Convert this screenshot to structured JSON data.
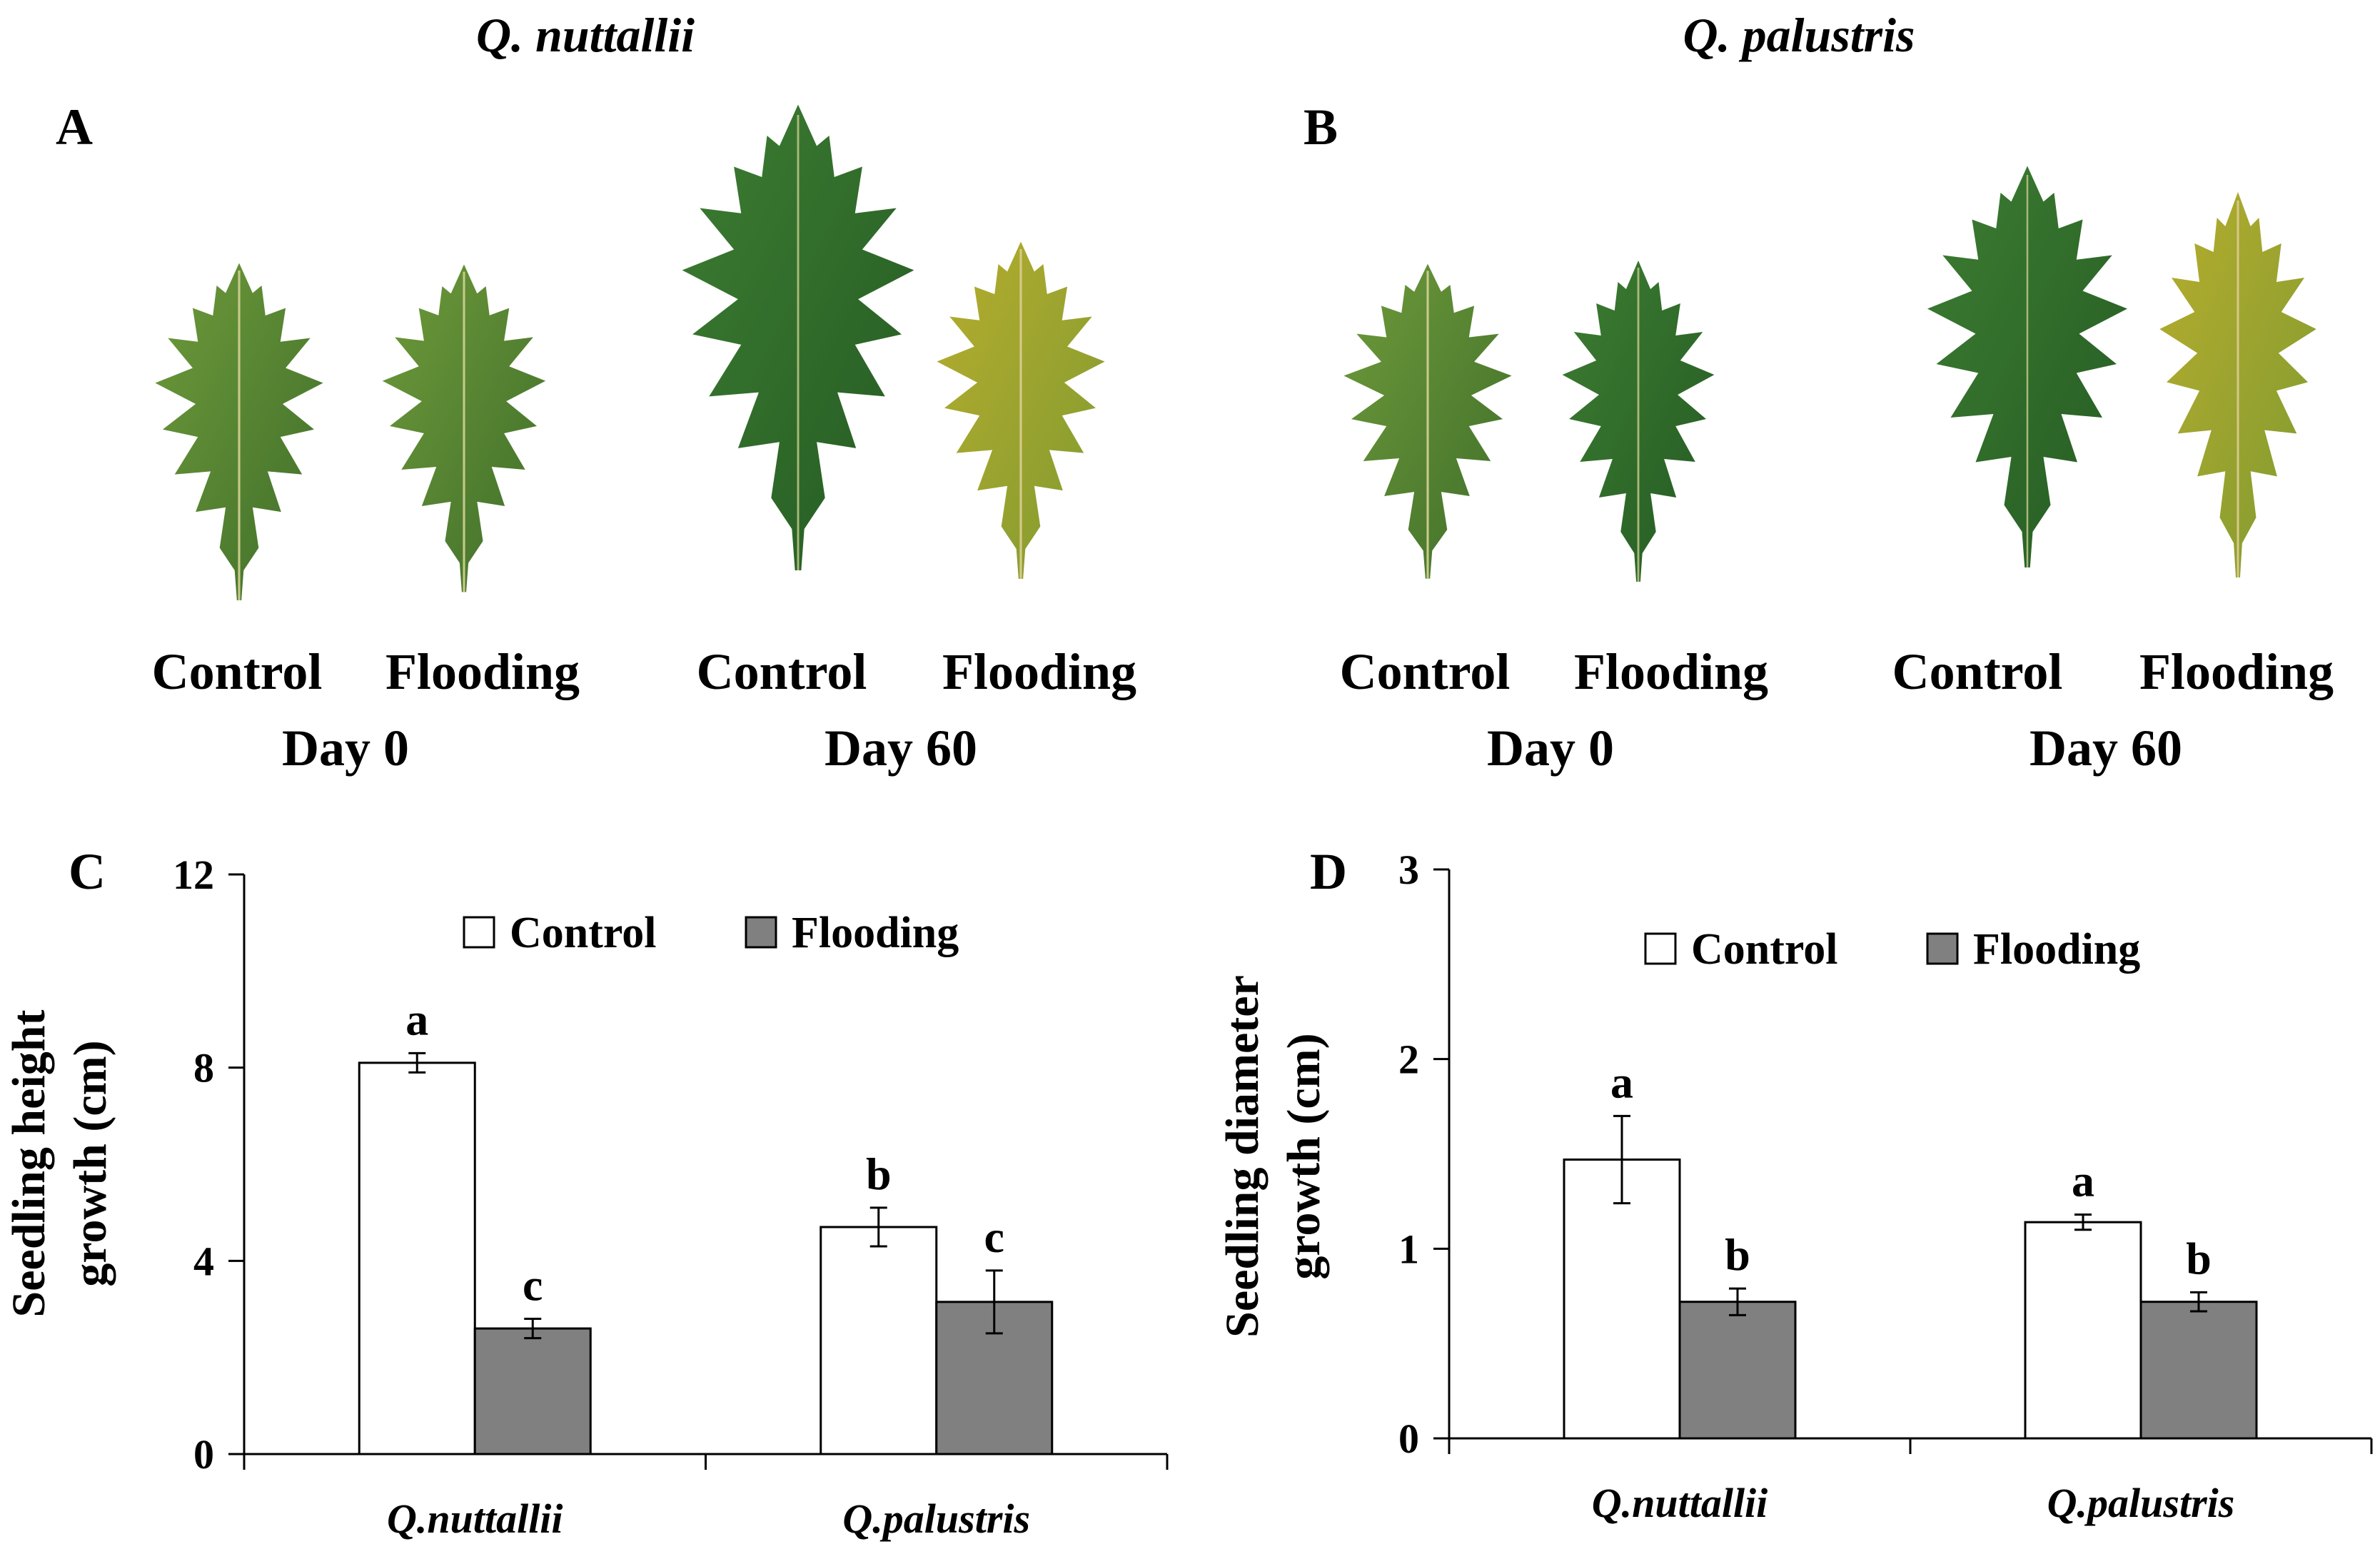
{
  "species_titles": [
    "Q. nuttallii",
    "Q. palustris"
  ],
  "panel_labels": [
    "A",
    "B",
    "C",
    "D"
  ],
  "photo_panels": [
    {
      "species": "Q. nuttallii",
      "groups": [
        {
          "day": "Day 0",
          "treatments": [
            "Control",
            "Flooding"
          ]
        },
        {
          "day": "Day 60",
          "treatments": [
            "Control",
            "Flooding"
          ]
        }
      ]
    },
    {
      "species": "Q. palustris",
      "groups": [
        {
          "day": "Day 0",
          "treatments": [
            "Control",
            "Flooding"
          ]
        },
        {
          "day": "Day 60",
          "treatments": [
            "Control",
            "Flooding"
          ]
        }
      ]
    }
  ],
  "colors": {
    "control_bar": "#ffffff",
    "flooding_bar": "#808080",
    "axis": "#000000",
    "leaf_dark_green": "#2e6b2a",
    "leaf_green": "#4a7d2e",
    "leaf_yellow_green": "#9aa532"
  },
  "chart_data": [
    {
      "panel": "C",
      "type": "bar",
      "categories": [
        "Q.nuttallii",
        "Q.palustris"
      ],
      "series": [
        {
          "name": "Control",
          "values": [
            8.1,
            4.7
          ],
          "errors": [
            0.2,
            0.4
          ],
          "letters": [
            "a",
            "b"
          ]
        },
        {
          "name": "Flooding",
          "values": [
            2.6,
            3.15
          ],
          "errors": [
            0.2,
            0.65
          ],
          "letters": [
            "c",
            "c"
          ]
        }
      ],
      "ylabel": [
        "Seedling height",
        "growth (cm)"
      ],
      "ylim": [
        0,
        12
      ],
      "yticks": [
        0,
        4,
        8,
        12
      ],
      "legend": [
        "Control",
        "Flooding"
      ],
      "legend_position": "top"
    },
    {
      "panel": "D",
      "type": "bar",
      "categories": [
        "Q.nuttallii",
        "Q.palustris"
      ],
      "series": [
        {
          "name": "Control",
          "values": [
            1.47,
            1.14
          ],
          "errors": [
            0.23,
            0.04
          ],
          "letters": [
            "a",
            "a"
          ]
        },
        {
          "name": "Flooding",
          "values": [
            0.72,
            0.72
          ],
          "errors": [
            0.07,
            0.05
          ],
          "letters": [
            "b",
            "b"
          ]
        }
      ],
      "ylabel": [
        "Seedling diameter",
        "growth (cm)"
      ],
      "ylim": [
        0,
        3
      ],
      "yticks": [
        0,
        1,
        2,
        3
      ],
      "legend": [
        "Control",
        "Flooding"
      ],
      "legend_position": "top"
    }
  ]
}
